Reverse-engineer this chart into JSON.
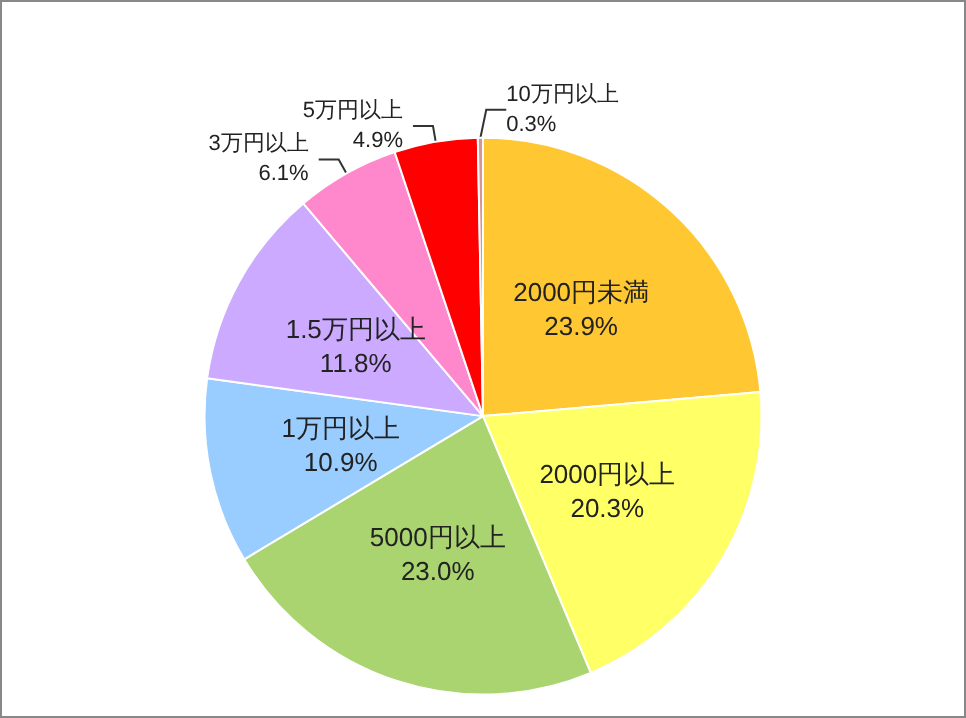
{
  "chart_data": {
    "type": "pie",
    "categories": [
      "2000円未満",
      "2000円以上",
      "5000円以上",
      "1万円以上",
      "1.5万円以上",
      "3万円以上",
      "5万円以上",
      "10万円以上"
    ],
    "values": [
      23.9,
      20.3,
      23.0,
      10.9,
      11.8,
      6.1,
      4.9,
      0.3
    ],
    "value_labels": [
      "23.9%",
      "20.3%",
      "23.0%",
      "10.9%",
      "11.8%",
      "6.1%",
      "4.9%",
      "0.3%"
    ],
    "colors": [
      "#ffc832",
      "#ffff66",
      "#a9d46f",
      "#99ccff",
      "#ccaaff",
      "#ff88cc",
      "#ff0000",
      "#d99594"
    ],
    "legend": false
  }
}
